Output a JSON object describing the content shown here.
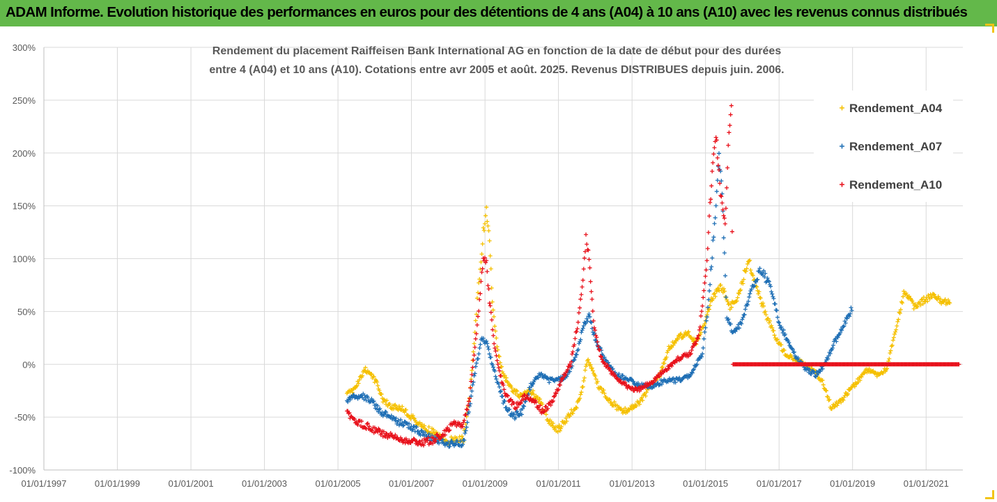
{
  "banner": {
    "title": "ADAM Informe. Evolution historique des performances en euros pour des détentions de 4 ans (A04) à 10 ans (A10) avec les revenus connus distribués"
  },
  "colors": {
    "banner": "#63b84a",
    "A04": "#f5c000",
    "A07": "#1f6fb5",
    "A10": "#e8121c",
    "grid": "#d9d9d9"
  },
  "chart_data": {
    "type": "scatter",
    "subtitle_lines": [
      "Rendement du placement Raiffeisen Bank International AG en fonction de la date de début pour des durées",
      "entre 4 (A04) et 10 ans (A10). Cotations entre avr 2005 et août. 2025. Revenus DISTRIBUES depuis juin. 2006."
    ],
    "x_ticks": [
      "01/01/1997",
      "01/01/1999",
      "01/01/2001",
      "01/01/2003",
      "01/01/2005",
      "01/01/2007",
      "01/01/2009",
      "01/01/2011",
      "01/01/2013",
      "01/01/2015",
      "01/01/2017",
      "01/01/2019",
      "01/01/2021"
    ],
    "y_ticks": [
      "300%",
      "250%",
      "200%",
      "150%",
      "100%",
      "50%",
      "0%",
      "-50%",
      "-100%"
    ],
    "xlim": [
      "1997-01-01",
      "2022-01-01"
    ],
    "ylim": [
      -100,
      300
    ],
    "y_unit": "%",
    "grid": true,
    "legend_position": "top-right",
    "marker": "+",
    "series": [
      {
        "name": "Rendement_A04",
        "color_key": "A04",
        "points": [
          [
            "2005-04-01",
            -28
          ],
          [
            "2005-06-01",
            -25
          ],
          [
            "2005-08-01",
            -15
          ],
          [
            "2005-10-01",
            -5
          ],
          [
            "2005-12-01",
            -10
          ],
          [
            "2006-02-01",
            -20
          ],
          [
            "2006-04-01",
            -35
          ],
          [
            "2006-07-01",
            -40
          ],
          [
            "2006-10-01",
            -42
          ],
          [
            "2007-01-01",
            -50
          ],
          [
            "2007-04-01",
            -58
          ],
          [
            "2007-07-01",
            -62
          ],
          [
            "2007-10-01",
            -68
          ],
          [
            "2008-01-01",
            -72
          ],
          [
            "2008-04-01",
            -72
          ],
          [
            "2008-06-01",
            -70
          ],
          [
            "2008-08-01",
            -30
          ],
          [
            "2008-09-15",
            20
          ],
          [
            "2008-10-15",
            60
          ],
          [
            "2008-11-15",
            90
          ],
          [
            "2008-12-15",
            125
          ],
          [
            "2009-01-15",
            145
          ],
          [
            "2009-02-15",
            115
          ],
          [
            "2009-03-15",
            60
          ],
          [
            "2009-05-01",
            15
          ],
          [
            "2009-07-01",
            -10
          ],
          [
            "2009-10-01",
            -25
          ],
          [
            "2010-01-01",
            -30
          ],
          [
            "2010-04-01",
            -25
          ],
          [
            "2010-07-01",
            -35
          ],
          [
            "2010-10-01",
            -55
          ],
          [
            "2011-01-01",
            -62
          ],
          [
            "2011-04-01",
            -50
          ],
          [
            "2011-07-01",
            -40
          ],
          [
            "2011-09-01",
            -20
          ],
          [
            "2011-10-15",
            5
          ],
          [
            "2011-12-01",
            -5
          ],
          [
            "2012-02-01",
            -20
          ],
          [
            "2012-06-01",
            -35
          ],
          [
            "2012-10-01",
            -45
          ],
          [
            "2013-01-01",
            -40
          ],
          [
            "2013-04-01",
            -35
          ],
          [
            "2013-07-01",
            -20
          ],
          [
            "2013-10-01",
            -10
          ],
          [
            "2014-01-01",
            15
          ],
          [
            "2014-04-01",
            25
          ],
          [
            "2014-07-01",
            30
          ],
          [
            "2014-10-01",
            20
          ],
          [
            "2015-01-01",
            40
          ],
          [
            "2015-03-01",
            60
          ],
          [
            "2015-06-01",
            75
          ],
          [
            "2015-09-01",
            55
          ],
          [
            "2015-12-01",
            65
          ],
          [
            "2016-03-01",
            100
          ],
          [
            "2016-06-01",
            70
          ],
          [
            "2016-09-01",
            45
          ],
          [
            "2016-12-01",
            25
          ],
          [
            "2017-03-01",
            10
          ],
          [
            "2017-06-01",
            5
          ],
          [
            "2017-09-01",
            0
          ],
          [
            "2017-12-01",
            -5
          ],
          [
            "2018-03-01",
            -15
          ],
          [
            "2018-06-01",
            -40
          ],
          [
            "2018-09-01",
            -35
          ],
          [
            "2018-12-01",
            -25
          ],
          [
            "2019-03-01",
            -15
          ],
          [
            "2019-06-01",
            -5
          ],
          [
            "2019-09-01",
            -10
          ],
          [
            "2019-12-01",
            -5
          ],
          [
            "2020-03-01",
            30
          ],
          [
            "2020-06-01",
            70
          ],
          [
            "2020-09-01",
            55
          ],
          [
            "2020-12-01",
            60
          ],
          [
            "2021-03-01",
            65
          ],
          [
            "2021-06-01",
            60
          ],
          [
            "2021-09-01",
            60
          ]
        ]
      },
      {
        "name": "Rendement_A07",
        "color_key": "A07",
        "points": [
          [
            "2005-04-01",
            -35
          ],
          [
            "2005-06-01",
            -30
          ],
          [
            "2005-09-01",
            -30
          ],
          [
            "2005-12-01",
            -35
          ],
          [
            "2006-03-01",
            -45
          ],
          [
            "2006-06-01",
            -50
          ],
          [
            "2006-09-01",
            -55
          ],
          [
            "2006-12-01",
            -58
          ],
          [
            "2007-03-01",
            -62
          ],
          [
            "2007-06-01",
            -68
          ],
          [
            "2007-09-01",
            -72
          ],
          [
            "2007-12-01",
            -75
          ],
          [
            "2008-03-01",
            -76
          ],
          [
            "2008-06-01",
            -75
          ],
          [
            "2008-08-01",
            -40
          ],
          [
            "2008-09-15",
            -10
          ],
          [
            "2008-11-01",
            10
          ],
          [
            "2008-12-01",
            25
          ],
          [
            "2009-01-15",
            20
          ],
          [
            "2009-03-01",
            5
          ],
          [
            "2009-05-01",
            -15
          ],
          [
            "2009-07-01",
            -35
          ],
          [
            "2009-10-01",
            -50
          ],
          [
            "2010-01-01",
            -45
          ],
          [
            "2010-04-01",
            -20
          ],
          [
            "2010-07-01",
            -10
          ],
          [
            "2010-10-01",
            -15
          ],
          [
            "2011-01-01",
            -15
          ],
          [
            "2011-04-01",
            -10
          ],
          [
            "2011-07-01",
            10
          ],
          [
            "2011-09-01",
            35
          ],
          [
            "2011-11-01",
            45
          ],
          [
            "2012-01-01",
            25
          ],
          [
            "2012-04-01",
            5
          ],
          [
            "2012-08-01",
            -10
          ],
          [
            "2012-12-01",
            -15
          ],
          [
            "2013-04-01",
            -20
          ],
          [
            "2013-08-01",
            -20
          ],
          [
            "2013-12-01",
            -15
          ],
          [
            "2014-04-01",
            -15
          ],
          [
            "2014-08-01",
            -10
          ],
          [
            "2014-12-01",
            10
          ],
          [
            "2015-02-01",
            60
          ],
          [
            "2015-03-01",
            95
          ],
          [
            "2015-04-15",
            150
          ],
          [
            "2015-05-15",
            200
          ],
          [
            "2015-06-15",
            160
          ],
          [
            "2015-08-01",
            45
          ],
          [
            "2015-10-01",
            30
          ],
          [
            "2016-01-01",
            40
          ],
          [
            "2016-04-01",
            70
          ],
          [
            "2016-07-01",
            90
          ],
          [
            "2016-10-01",
            75
          ],
          [
            "2017-01-01",
            40
          ],
          [
            "2017-04-01",
            20
          ],
          [
            "2017-07-01",
            5
          ],
          [
            "2017-10-01",
            -5
          ],
          [
            "2018-01-01",
            -10
          ],
          [
            "2018-04-01",
            0
          ],
          [
            "2018-07-01",
            20
          ],
          [
            "2018-10-01",
            35
          ],
          [
            "2019-01-01",
            55
          ]
        ]
      },
      {
        "name": "Rendement_A10",
        "color_key": "A10",
        "points": [
          [
            "2005-04-01",
            -45
          ],
          [
            "2005-07-01",
            -55
          ],
          [
            "2005-10-01",
            -58
          ],
          [
            "2006-01-01",
            -62
          ],
          [
            "2006-04-01",
            -66
          ],
          [
            "2006-08-01",
            -70
          ],
          [
            "2006-12-01",
            -72
          ],
          [
            "2007-04-01",
            -74
          ],
          [
            "2007-08-01",
            -72
          ],
          [
            "2007-12-01",
            -65
          ],
          [
            "2008-03-01",
            -55
          ],
          [
            "2008-06-01",
            -58
          ],
          [
            "2008-08-01",
            -30
          ],
          [
            "2008-09-15",
            10
          ],
          [
            "2008-10-15",
            35
          ],
          [
            "2008-11-15",
            70
          ],
          [
            "2008-12-15",
            100
          ],
          [
            "2009-01-15",
            95
          ],
          [
            "2009-02-15",
            60
          ],
          [
            "2009-04-01",
            20
          ],
          [
            "2009-06-01",
            -10
          ],
          [
            "2009-08-01",
            -30
          ],
          [
            "2009-11-01",
            -40
          ],
          [
            "2010-02-01",
            -30
          ],
          [
            "2010-05-01",
            -35
          ],
          [
            "2010-08-01",
            -45
          ],
          [
            "2010-11-01",
            -35
          ],
          [
            "2011-02-01",
            -15
          ],
          [
            "2011-05-01",
            0
          ],
          [
            "2011-07-15",
            40
          ],
          [
            "2011-09-01",
            80
          ],
          [
            "2011-10-01",
            120
          ],
          [
            "2011-11-01",
            100
          ],
          [
            "2011-12-15",
            40
          ],
          [
            "2012-03-01",
            5
          ],
          [
            "2012-07-01",
            -10
          ],
          [
            "2012-11-01",
            -20
          ],
          [
            "2013-03-01",
            -25
          ],
          [
            "2013-08-01",
            -15
          ],
          [
            "2013-12-01",
            -5
          ],
          [
            "2014-04-01",
            5
          ],
          [
            "2014-08-01",
            10
          ],
          [
            "2014-11-01",
            30
          ],
          [
            "2015-01-15",
            100
          ],
          [
            "2015-02-15",
            150
          ],
          [
            "2015-03-15",
            190
          ],
          [
            "2015-04-15",
            220
          ],
          [
            "2015-05-15",
            180
          ],
          [
            "2015-06-15",
            150
          ],
          [
            "2015-07-15",
            130
          ],
          [
            "2015-08-15",
            210
          ],
          [
            "2015-09-15",
            250
          ],
          [
            "2015-10-01",
            0
          ],
          [
            "2016-06-01",
            0
          ],
          [
            "2017-01-01",
            0
          ],
          [
            "2017-06-01",
            0
          ],
          [
            "2018-01-01",
            0
          ],
          [
            "2018-06-01",
            0
          ],
          [
            "2019-01-01",
            0
          ],
          [
            "2019-06-01",
            0
          ],
          [
            "2020-01-01",
            0
          ],
          [
            "2020-06-01",
            0
          ],
          [
            "2021-01-01",
            0
          ],
          [
            "2021-06-01",
            0
          ],
          [
            "2021-12-01",
            0
          ]
        ]
      }
    ]
  }
}
